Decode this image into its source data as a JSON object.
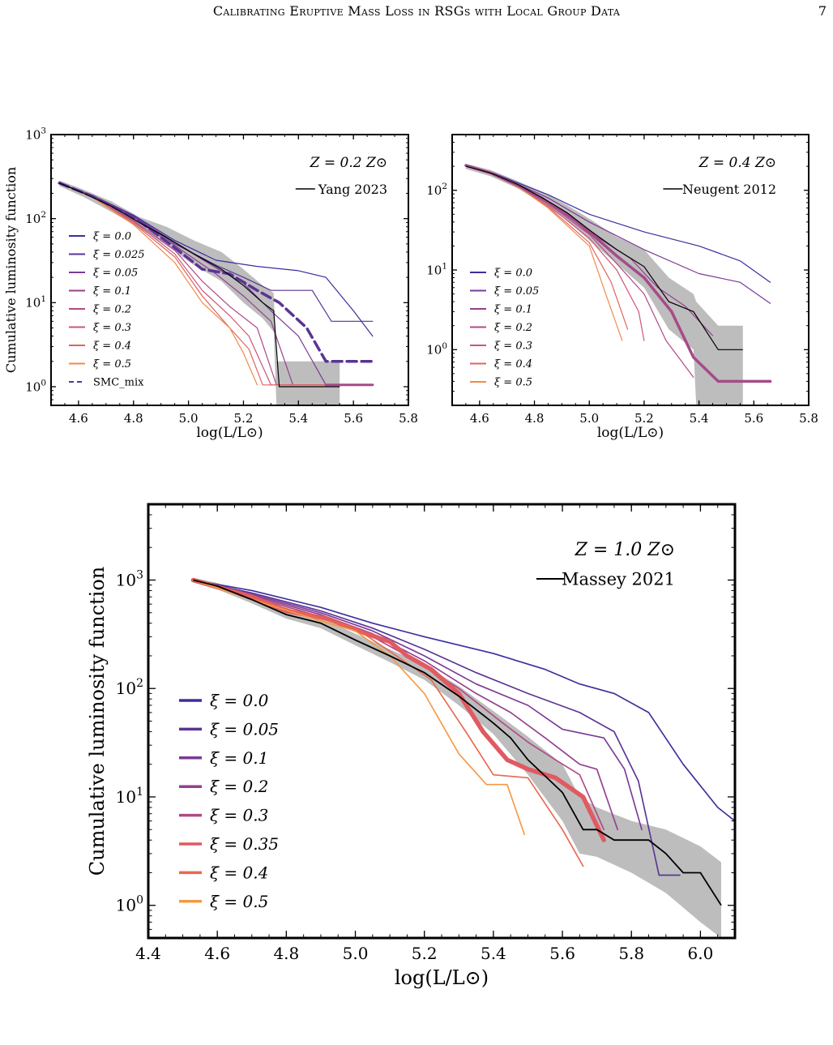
{
  "header": {
    "title": "Calibrating Eruptive Mass Loss in RSGs with Local Group Data",
    "page_number": "7"
  },
  "chart_data": [
    {
      "type": "line",
      "panel": "top-left",
      "annotation": "Z = 0.2 Z⊙",
      "xlabel": "log(L/L⊙)",
      "ylabel": "Cumulative luminosity function",
      "xlim": [
        4.5,
        5.8
      ],
      "ylim": [
        0.6,
        1000
      ],
      "yscale": "log",
      "xticks": [
        "4.6",
        "4.8",
        "5.0",
        "5.2",
        "5.4",
        "5.6",
        "5.8"
      ],
      "yticks": [
        "10^0",
        "10^1",
        "10^2",
        "10^3"
      ],
      "legend_position": "left",
      "observed": {
        "name": "Yang 2023",
        "x": [
          4.53,
          4.62,
          4.72,
          4.82,
          4.92,
          5.02,
          5.12,
          5.2,
          5.27,
          5.31,
          5.33,
          5.42,
          5.55
        ],
        "y": [
          265,
          200,
          140,
          90,
          60,
          38,
          25,
          16,
          10,
          8,
          1,
          1,
          1
        ]
      },
      "band": {
        "x": [
          4.53,
          4.62,
          4.72,
          4.82,
          4.92,
          5.02,
          5.12,
          5.2,
          5.27,
          5.31,
          5.32,
          5.55
        ],
        "lower": [
          245,
          180,
          120,
          78,
          48,
          28,
          18,
          10,
          6.5,
          4.5,
          0.6,
          0.6
        ],
        "upper": [
          285,
          220,
          160,
          105,
          80,
          55,
          40,
          25,
          16,
          13,
          2,
          2
        ]
      },
      "series": [
        {
          "name": "ξ = 0.0",
          "color": "#3b2f9e",
          "width": 1.2,
          "x": [
            4.53,
            4.65,
            4.8,
            4.95,
            5.1,
            5.25,
            5.4,
            5.5,
            5.6,
            5.67
          ],
          "y": [
            265,
            190,
            110,
            55,
            32,
            27,
            24,
            20,
            8,
            4
          ]
        },
        {
          "name": "ξ = 0.025",
          "color": "#5a3495",
          "width": 1.2,
          "x": [
            4.53,
            4.65,
            4.8,
            4.95,
            5.1,
            5.2,
            5.3,
            5.45,
            5.52,
            5.67
          ],
          "y": [
            265,
            185,
            105,
            50,
            28,
            20,
            14,
            14,
            6,
            6
          ]
        },
        {
          "name": "ξ = 0.05",
          "color": "#7b3a96",
          "width": 1.2,
          "x": [
            4.53,
            4.65,
            4.8,
            4.95,
            5.1,
            5.2,
            5.3,
            5.4,
            5.5,
            5.67
          ],
          "y": [
            265,
            190,
            108,
            52,
            26,
            17,
            8,
            4,
            1.05,
            1.05
          ]
        },
        {
          "name": "ξ = 0.1",
          "color": "#93408f",
          "width": 1.2,
          "x": [
            4.53,
            4.65,
            4.8,
            4.95,
            5.1,
            5.2,
            5.3,
            5.38,
            5.67
          ],
          "y": [
            265,
            185,
            100,
            48,
            22,
            12,
            6,
            1.05,
            1.05
          ]
        },
        {
          "name": "ξ = 0.2",
          "color": "#b04a85",
          "width": 1.2,
          "x": [
            4.53,
            4.65,
            4.8,
            4.95,
            5.05,
            5.15,
            5.25,
            5.32,
            5.67
          ],
          "y": [
            265,
            180,
            95,
            42,
            18,
            9,
            5,
            1.05,
            1.05
          ]
        },
        {
          "name": "ξ = 0.3",
          "color": "#cc5577",
          "width": 1.2,
          "x": [
            4.53,
            4.65,
            4.8,
            4.95,
            5.05,
            5.15,
            5.22,
            5.3,
            5.67
          ],
          "y": [
            265,
            180,
            92,
            38,
            14,
            7,
            4,
            1.05,
            1.05
          ]
        },
        {
          "name": "ξ = 0.4",
          "color": "#e2635f",
          "width": 1.2,
          "x": [
            4.53,
            4.65,
            4.8,
            4.95,
            5.05,
            5.15,
            5.22,
            5.27,
            5.67
          ],
          "y": [
            265,
            185,
            88,
            35,
            12,
            5,
            2.8,
            1.05,
            1.05
          ]
        },
        {
          "name": "ξ = 0.5",
          "color": "#f08a4b",
          "width": 1.2,
          "x": [
            4.53,
            4.65,
            4.8,
            4.95,
            5.05,
            5.15,
            5.2,
            5.25
          ],
          "y": [
            265,
            180,
            85,
            30,
            10,
            5,
            2.5,
            1.05
          ]
        },
        {
          "name": "SMC_mix",
          "color": "#5a3495",
          "width": 3.5,
          "dashed": true,
          "x": [
            4.53,
            4.65,
            4.8,
            4.95,
            5.05,
            5.15,
            5.25,
            5.33,
            5.43,
            5.5,
            5.67
          ],
          "y": [
            265,
            185,
            105,
            45,
            25,
            22,
            14,
            10,
            5,
            2,
            2
          ]
        },
        {
          "name": "",
          "color": "#a64a8a",
          "width": 3,
          "x": [
            5.5,
            5.67
          ],
          "y": [
            1.05,
            1.05
          ]
        }
      ]
    },
    {
      "type": "line",
      "panel": "top-right",
      "annotation": "Z = 0.4 Z⊙",
      "xlabel": "log(L/L⊙)",
      "ylabel": "",
      "xlim": [
        4.5,
        5.8
      ],
      "ylim": [
        0.2,
        500
      ],
      "yscale": "log",
      "xticks": [
        "4.6",
        "4.8",
        "5.0",
        "5.2",
        "5.4",
        "5.6",
        "5.8"
      ],
      "yticks": [
        "10^0",
        "10^1",
        "10^2"
      ],
      "legend_position": "left",
      "observed": {
        "name": "Neugent 2012",
        "x": [
          4.55,
          4.64,
          4.74,
          4.83,
          4.92,
          5.01,
          5.1,
          5.2,
          5.29,
          5.38,
          5.47,
          5.56
        ],
        "y": [
          200,
          165,
          118,
          80,
          52,
          30,
          18,
          11,
          4,
          3,
          1,
          1
        ]
      },
      "band": {
        "x": [
          4.55,
          4.64,
          4.74,
          4.83,
          4.92,
          5.01,
          5.1,
          5.2,
          5.29,
          5.38,
          5.39,
          5.47,
          5.56
        ],
        "lower": [
          185,
          150,
          105,
          68,
          42,
          22,
          12,
          6,
          1.8,
          1,
          0.2,
          0.2,
          0.2
        ],
        "upper": [
          215,
          180,
          130,
          95,
          65,
          42,
          26,
          18,
          8,
          5,
          4,
          2,
          2
        ]
      },
      "series": [
        {
          "name": "ξ = 0.0",
          "color": "#3b2f9e",
          "width": 1.2,
          "x": [
            4.55,
            4.65,
            4.75,
            4.85,
            5.0,
            5.2,
            5.4,
            5.55,
            5.66
          ],
          "y": [
            205,
            165,
            120,
            88,
            50,
            30,
            20,
            13,
            7
          ]
        },
        {
          "name": "ξ = 0.05",
          "color": "#7b3a96",
          "width": 1.2,
          "x": [
            4.55,
            4.65,
            4.75,
            4.85,
            5.0,
            5.2,
            5.4,
            5.55,
            5.66
          ],
          "y": [
            205,
            162,
            115,
            80,
            40,
            18,
            9,
            7,
            3.8
          ]
        },
        {
          "name": "ξ = 0.1",
          "color": "#93408f",
          "width": 1.2,
          "x": [
            4.55,
            4.65,
            4.75,
            4.85,
            5.0,
            5.15,
            5.25,
            5.35,
            5.45
          ],
          "y": [
            205,
            160,
            112,
            70,
            30,
            14,
            6,
            3.5,
            1.5
          ]
        },
        {
          "name": "ξ = 0.2",
          "color": "#b04a85",
          "width": 1.2,
          "x": [
            4.55,
            4.65,
            4.75,
            4.85,
            5.0,
            5.1,
            5.2,
            5.28,
            5.38
          ],
          "y": [
            205,
            160,
            110,
            68,
            28,
            12,
            5,
            1.3,
            0.45
          ]
        },
        {
          "name": "ξ = 0.3",
          "color": "#cc5577",
          "width": 1.2,
          "x": [
            4.55,
            4.65,
            4.75,
            4.85,
            5.0,
            5.1,
            5.18,
            5.2
          ],
          "y": [
            205,
            158,
            108,
            65,
            25,
            10,
            3,
            1.3
          ]
        },
        {
          "name": "ξ = 0.4",
          "color": "#e2635f",
          "width": 1.2,
          "x": [
            4.55,
            4.65,
            4.75,
            4.85,
            5.0,
            5.08,
            5.14
          ],
          "y": [
            205,
            158,
            106,
            62,
            22,
            7,
            1.8
          ]
        },
        {
          "name": "ξ = 0.5",
          "color": "#f08a4b",
          "width": 1.2,
          "x": [
            4.55,
            4.65,
            4.75,
            4.85,
            5.0,
            5.06,
            5.12
          ],
          "y": [
            205,
            155,
            105,
            60,
            20,
            5,
            1.3
          ]
        },
        {
          "name": "",
          "color": "#a64a8a",
          "width": 3.5,
          "x": [
            4.55,
            4.64,
            4.74,
            4.83,
            4.92,
            5.01,
            5.1,
            5.2,
            5.3,
            5.38,
            5.47,
            5.56,
            5.66
          ],
          "y": [
            205,
            165,
            115,
            78,
            50,
            28,
            15,
            8,
            3,
            0.8,
            0.4,
            0.4,
            0.4
          ]
        }
      ]
    },
    {
      "type": "line",
      "panel": "bottom",
      "annotation": "Z = 1.0 Z⊙",
      "xlabel": "log(L/L⊙)",
      "ylabel": "Cumulative luminosity function",
      "xlim": [
        4.4,
        6.1
      ],
      "ylim": [
        0.5,
        5000
      ],
      "yscale": "log",
      "xticks": [
        "4.4",
        "4.6",
        "4.8",
        "5.0",
        "5.2",
        "5.4",
        "5.6",
        "5.8",
        "6.0"
      ],
      "yticks": [
        "10^0",
        "10^1",
        "10^2",
        "10^3"
      ],
      "legend_position": "left",
      "observed": {
        "name": "Massey 2021",
        "x": [
          4.53,
          4.6,
          4.7,
          4.8,
          4.9,
          5.0,
          5.1,
          5.2,
          5.3,
          5.4,
          5.45,
          5.5,
          5.6,
          5.66,
          5.7,
          5.75,
          5.85,
          5.9,
          5.95,
          6.0,
          6.06
        ],
        "y": [
          1000,
          880,
          660,
          480,
          400,
          280,
          200,
          140,
          85,
          48,
          35,
          22,
          11,
          5,
          5,
          4,
          4,
          3,
          2,
          2,
          1
        ]
      },
      "band": {
        "x": [
          4.53,
          4.6,
          4.7,
          4.8,
          4.9,
          5.0,
          5.1,
          5.2,
          5.3,
          5.4,
          5.5,
          5.6,
          5.65,
          5.7,
          5.8,
          5.9,
          6.0,
          6.06
        ],
        "lower": [
          950,
          820,
          610,
          440,
          360,
          250,
          175,
          120,
          70,
          38,
          16,
          6,
          3,
          2.8,
          2,
          1.3,
          0.7,
          0.5
        ],
        "upper": [
          1050,
          940,
          720,
          540,
          450,
          320,
          230,
          165,
          105,
          62,
          36,
          20,
          10,
          8,
          6,
          5,
          3.5,
          2.5
        ]
      },
      "series": [
        {
          "name": "ξ = 0.0",
          "color": "#3b2f9e",
          "width": 1.5,
          "x": [
            4.53,
            4.7,
            4.9,
            5.05,
            5.2,
            5.4,
            5.55,
            5.65,
            5.75,
            5.85,
            5.95,
            6.05,
            6.1
          ],
          "y": [
            1000,
            800,
            560,
            400,
            300,
            210,
            150,
            110,
            90,
            60,
            20,
            8,
            6
          ]
        },
        {
          "name": "ξ = 0.05",
          "color": "#5a3495",
          "width": 1.5,
          "x": [
            4.53,
            4.7,
            4.9,
            5.05,
            5.2,
            5.35,
            5.5,
            5.65,
            5.75,
            5.82,
            5.88,
            5.94
          ],
          "y": [
            1000,
            760,
            520,
            360,
            230,
            140,
            90,
            60,
            40,
            14,
            1.9,
            1.9
          ]
        },
        {
          "name": "ξ = 0.1",
          "color": "#7b3a96",
          "width": 1.5,
          "x": [
            4.53,
            4.7,
            4.9,
            5.05,
            5.2,
            5.35,
            5.5,
            5.6,
            5.72,
            5.78,
            5.83
          ],
          "y": [
            1000,
            740,
            500,
            340,
            200,
            110,
            70,
            42,
            35,
            18,
            5
          ]
        },
        {
          "name": "ξ = 0.2",
          "color": "#93408f",
          "width": 1.5,
          "x": [
            4.53,
            4.7,
            4.9,
            5.05,
            5.2,
            5.35,
            5.45,
            5.55,
            5.65,
            5.7,
            5.76
          ],
          "y": [
            1000,
            720,
            480,
            320,
            180,
            90,
            60,
            35,
            20,
            18,
            5
          ]
        },
        {
          "name": "ξ = 0.3",
          "color": "#b04a85",
          "width": 1.5,
          "x": [
            4.53,
            4.7,
            4.9,
            5.05,
            5.15,
            5.3,
            5.42,
            5.5,
            5.58,
            5.65,
            5.72
          ],
          "y": [
            1000,
            700,
            460,
            300,
            200,
            100,
            50,
            32,
            22,
            16,
            5
          ]
        },
        {
          "name": "ξ = 0.35",
          "color": "#e05a62",
          "width": 5,
          "x": [
            4.53,
            4.7,
            4.8,
            4.92,
            5.02,
            5.1,
            5.15,
            5.22,
            5.3,
            5.37,
            5.44,
            5.5,
            5.58,
            5.66,
            5.72
          ],
          "y": [
            1000,
            700,
            520,
            440,
            330,
            270,
            200,
            150,
            90,
            40,
            22,
            18,
            15,
            10,
            4
          ]
        },
        {
          "name": "ξ = 0.4",
          "color": "#e8694f",
          "width": 1.5,
          "x": [
            4.53,
            4.7,
            4.9,
            5.0,
            5.1,
            5.22,
            5.32,
            5.4,
            5.5,
            5.6,
            5.66
          ],
          "y": [
            1000,
            680,
            440,
            360,
            220,
            120,
            40,
            16,
            15,
            5,
            2.3
          ]
        },
        {
          "name": "ξ = 0.5",
          "color": "#f59a45",
          "width": 1.5,
          "x": [
            4.53,
            4.7,
            4.9,
            5.0,
            5.1,
            5.2,
            5.3,
            5.38,
            5.44,
            5.49
          ],
          "y": [
            1000,
            660,
            420,
            340,
            200,
            90,
            25,
            13,
            13,
            4.5
          ]
        }
      ]
    }
  ]
}
